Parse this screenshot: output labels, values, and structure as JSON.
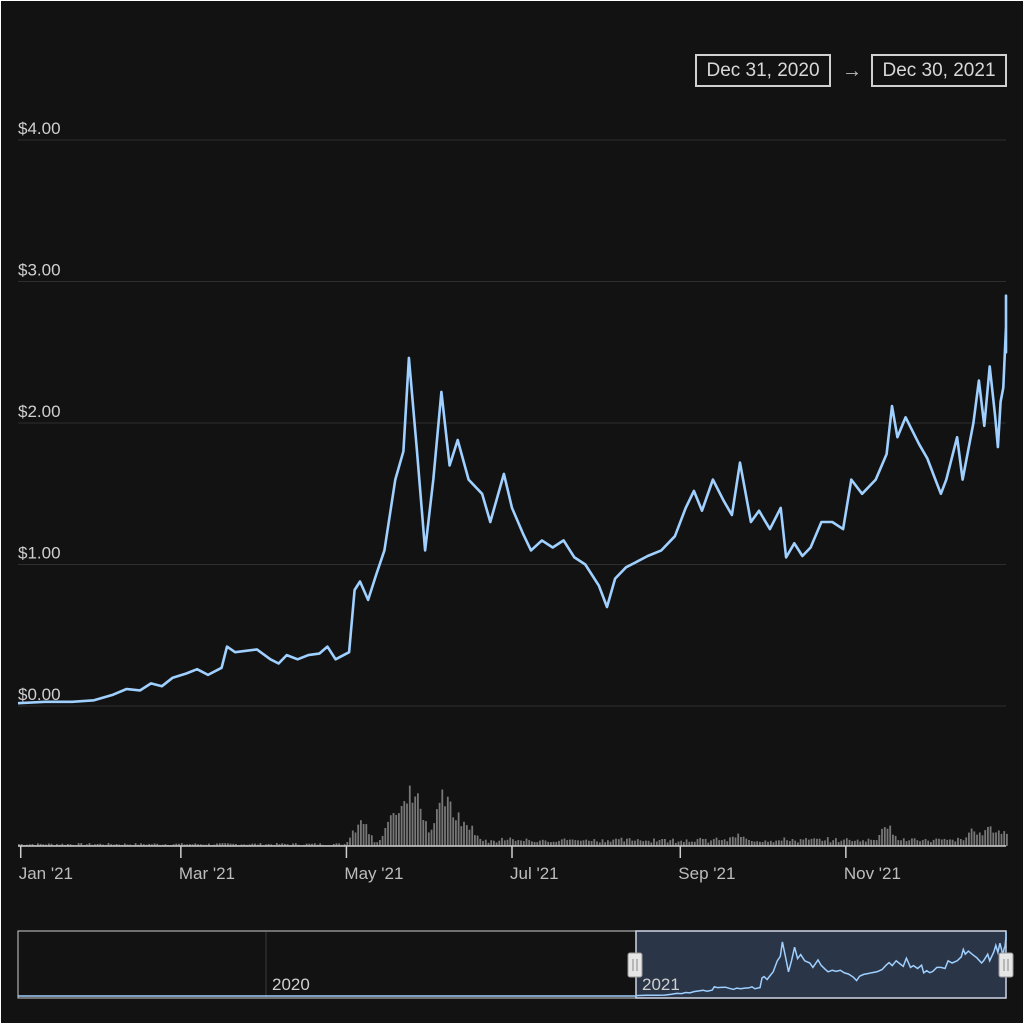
{
  "range_selector": {
    "from": "Dec 31, 2020",
    "arrow": "→",
    "to": "Dec 30, 2021"
  },
  "colors": {
    "background": "#121212",
    "line": "#9fd0ff",
    "volume": "#777777",
    "grid": "#2e2e2e",
    "navigator_fill": "#2a3548",
    "navigator_border": "#cfd6e6"
  },
  "navigator": {
    "period_labels": [
      "2020",
      "2021"
    ],
    "handle_icon": "grip-handle-icon"
  },
  "chart_data": {
    "type": "line",
    "title": "",
    "xlabel": "",
    "ylabel": "",
    "y_ticks": [
      "$0.00",
      "$1.00",
      "$2.00",
      "$3.00",
      "$4.00"
    ],
    "y_tick_values": [
      0,
      1,
      2,
      3,
      4
    ],
    "ylim": [
      0,
      4
    ],
    "x_ticks": [
      "Jan '21",
      "Mar '21",
      "May '21",
      "Jul '21",
      "Sep '21",
      "Nov '21"
    ],
    "x_tick_dates": [
      "2021-01-01",
      "2021-03-01",
      "2021-05-01",
      "2021-07-01",
      "2021-09-01",
      "2021-11-01"
    ],
    "xlim": [
      "2020-12-31",
      "2021-12-30"
    ],
    "grid": true,
    "legend": "none",
    "price_series": {
      "name": "",
      "points": [
        [
          "2020-12-31",
          0.02
        ],
        [
          "2021-01-10",
          0.03
        ],
        [
          "2021-01-20",
          0.03
        ],
        [
          "2021-01-28",
          0.04
        ],
        [
          "2021-02-04",
          0.08
        ],
        [
          "2021-02-09",
          0.12
        ],
        [
          "2021-02-14",
          0.11
        ],
        [
          "2021-02-18",
          0.16
        ],
        [
          "2021-02-22",
          0.14
        ],
        [
          "2021-02-26",
          0.2
        ],
        [
          "2021-03-03",
          0.23
        ],
        [
          "2021-03-07",
          0.26
        ],
        [
          "2021-03-11",
          0.22
        ],
        [
          "2021-03-16",
          0.27
        ],
        [
          "2021-03-18",
          0.42
        ],
        [
          "2021-03-21",
          0.38
        ],
        [
          "2021-03-25",
          0.39
        ],
        [
          "2021-03-29",
          0.4
        ],
        [
          "2021-04-03",
          0.33
        ],
        [
          "2021-04-06",
          0.3
        ],
        [
          "2021-04-09",
          0.36
        ],
        [
          "2021-04-13",
          0.33
        ],
        [
          "2021-04-17",
          0.36
        ],
        [
          "2021-04-21",
          0.37
        ],
        [
          "2021-04-24",
          0.42
        ],
        [
          "2021-04-27",
          0.33
        ],
        [
          "2021-05-02",
          0.38
        ],
        [
          "2021-05-04",
          0.82
        ],
        [
          "2021-05-06",
          0.88
        ],
        [
          "2021-05-09",
          0.75
        ],
        [
          "2021-05-12",
          0.93
        ],
        [
          "2021-05-15",
          1.1
        ],
        [
          "2021-05-19",
          1.6
        ],
        [
          "2021-05-22",
          1.8
        ],
        [
          "2021-05-24",
          2.46
        ],
        [
          "2021-05-27",
          1.8
        ],
        [
          "2021-05-30",
          1.1
        ],
        [
          "2021-06-02",
          1.6
        ],
        [
          "2021-06-05",
          2.22
        ],
        [
          "2021-06-08",
          1.7
        ],
        [
          "2021-06-11",
          1.88
        ],
        [
          "2021-06-15",
          1.6
        ],
        [
          "2021-06-20",
          1.5
        ],
        [
          "2021-06-23",
          1.3
        ],
        [
          "2021-06-28",
          1.64
        ],
        [
          "2021-07-01",
          1.4
        ],
        [
          "2021-07-05",
          1.22
        ],
        [
          "2021-07-08",
          1.1
        ],
        [
          "2021-07-12",
          1.17
        ],
        [
          "2021-07-16",
          1.12
        ],
        [
          "2021-07-20",
          1.17
        ],
        [
          "2021-07-24",
          1.05
        ],
        [
          "2021-07-28",
          1.0
        ],
        [
          "2021-08-02",
          0.85
        ],
        [
          "2021-08-05",
          0.7
        ],
        [
          "2021-08-08",
          0.9
        ],
        [
          "2021-08-12",
          0.98
        ],
        [
          "2021-08-16",
          1.02
        ],
        [
          "2021-08-20",
          1.06
        ],
        [
          "2021-08-25",
          1.1
        ],
        [
          "2021-08-30",
          1.2
        ],
        [
          "2021-09-03",
          1.4
        ],
        [
          "2021-09-06",
          1.52
        ],
        [
          "2021-09-09",
          1.38
        ],
        [
          "2021-09-13",
          1.6
        ],
        [
          "2021-09-17",
          1.45
        ],
        [
          "2021-09-20",
          1.35
        ],
        [
          "2021-09-23",
          1.72
        ],
        [
          "2021-09-27",
          1.3
        ],
        [
          "2021-09-30",
          1.38
        ],
        [
          "2021-10-04",
          1.25
        ],
        [
          "2021-10-08",
          1.4
        ],
        [
          "2021-10-10",
          1.05
        ],
        [
          "2021-10-13",
          1.15
        ],
        [
          "2021-10-16",
          1.06
        ],
        [
          "2021-10-19",
          1.12
        ],
        [
          "2021-10-23",
          1.3
        ],
        [
          "2021-10-27",
          1.3
        ],
        [
          "2021-10-31",
          1.25
        ],
        [
          "2021-11-03",
          1.6
        ],
        [
          "2021-11-07",
          1.5
        ],
        [
          "2021-11-12",
          1.6
        ],
        [
          "2021-11-16",
          1.78
        ],
        [
          "2021-11-18",
          2.12
        ],
        [
          "2021-11-20",
          1.9
        ],
        [
          "2021-11-23",
          2.04
        ],
        [
          "2021-11-28",
          1.85
        ],
        [
          "2021-12-01",
          1.75
        ],
        [
          "2021-12-04",
          1.6
        ],
        [
          "2021-12-06",
          1.5
        ],
        [
          "2021-12-08",
          1.6
        ],
        [
          "2021-12-12",
          1.9
        ],
        [
          "2021-12-14",
          1.6
        ],
        [
          "2021-12-18",
          2.0
        ],
        [
          "2021-12-20",
          2.3
        ],
        [
          "2021-12-22",
          1.98
        ],
        [
          "2021-12-24",
          2.4
        ],
        [
          "2021-12-26",
          2.05
        ],
        [
          "2021-12-27",
          1.83
        ],
        [
          "2021-12-28",
          2.15
        ],
        [
          "2021-12-29",
          2.25
        ],
        [
          "2021-12-29",
          2.68
        ],
        [
          "2021-12-30",
          2.9
        ],
        [
          "2021-12-30",
          2.5
        ],
        [
          "2021-12-30",
          2.6
        ]
      ]
    },
    "volume_series": {
      "name": "",
      "spikes": [
        [
          "2021-05-06",
          0.45
        ],
        [
          "2021-05-18",
          0.5
        ],
        [
          "2021-05-22",
          0.8
        ],
        [
          "2021-05-24",
          1.0
        ],
        [
          "2021-05-27",
          0.85
        ],
        [
          "2021-06-05",
          1.0
        ],
        [
          "2021-06-08",
          0.7
        ],
        [
          "2021-06-11",
          0.5
        ],
        [
          "2021-06-15",
          0.35
        ],
        [
          "2021-09-22",
          0.2
        ],
        [
          "2021-11-16",
          0.35
        ],
        [
          "2021-12-18",
          0.3
        ],
        [
          "2021-12-24",
          0.35
        ],
        [
          "2021-12-28",
          0.25
        ]
      ]
    }
  }
}
